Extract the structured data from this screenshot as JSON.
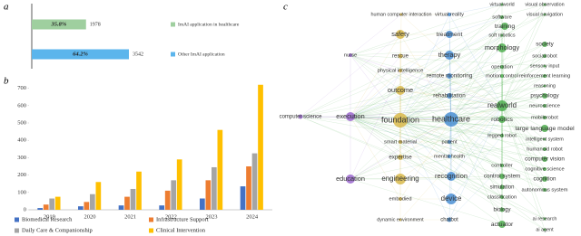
{
  "chart_data": [
    {
      "panel": "a",
      "type": "hbar",
      "categories": [
        "ImAI application in healthcare",
        "Other ImAI application"
      ],
      "values": [
        1978,
        3542
      ],
      "share_labels": [
        "35.8%",
        "64.2%"
      ],
      "colors": [
        "#9fcf9f",
        "#5bb5ec"
      ]
    },
    {
      "panel": "b",
      "type": "bar",
      "categories": [
        "2019",
        "2020",
        "2021",
        "2022",
        "2023",
        "2024"
      ],
      "series": [
        {
          "name": "Biomedical Research",
          "color": "#4472c4",
          "values": [
            10,
            20,
            25,
            25,
            65,
            135
          ]
        },
        {
          "name": "Infrastructure Support",
          "color": "#ed7d31",
          "values": [
            30,
            45,
            75,
            110,
            170,
            250
          ]
        },
        {
          "name": "Daily Care & Companionship",
          "color": "#a5a5a5",
          "values": [
            65,
            90,
            120,
            170,
            245,
            325
          ]
        },
        {
          "name": "Clinical Intervention",
          "color": "#ffc000",
          "values": [
            75,
            160,
            220,
            290,
            460,
            720
          ]
        }
      ],
      "ylim": [
        0,
        750
      ],
      "yticks": [
        0,
        100,
        200,
        300,
        400,
        500,
        600,
        700
      ],
      "grid": false
    }
  ],
  "network": {
    "panel": "c",
    "node_groups": [
      {
        "color": "#d8b84a",
        "labels": [
          "human computer interaction",
          "safety",
          "rescue",
          "physical intelligence",
          "outcome",
          "foundation",
          "smart material",
          "expertise",
          "engineering",
          "embodied",
          "dynamic environment"
        ]
      },
      {
        "color": "#4a8fd4",
        "labels": [
          "virtual reality",
          "treatment",
          "therapy",
          "remote monitoring",
          "rehabilitation",
          "healthcare",
          "patient",
          "mental health",
          "recognition",
          "device",
          "chatbot"
        ]
      },
      {
        "color": "#4fae4f",
        "labels": [
          "virtualworld",
          "software",
          "training",
          "soft robotics",
          "morphology",
          "operation",
          "motion control",
          "realworld",
          "robotics",
          "legged robot",
          "controller",
          "control system",
          "simulation",
          "classification",
          "biology",
          "actuator",
          "visual observation",
          "visual navigation",
          "society",
          "socialrobot",
          "sensory input",
          "reinforcement learning",
          "reasoning",
          "psychology",
          "neuroscience",
          "mobilerobot",
          "large language model",
          "intelligent system",
          "humanoid robot",
          "computer vision",
          "cognitive science",
          "cognition",
          "autonomous system",
          "ai research",
          "ai agent"
        ]
      },
      {
        "color": "#9966cc",
        "labels": [
          "nurse",
          "computer science",
          "execution",
          "education"
        ]
      }
    ]
  }
}
